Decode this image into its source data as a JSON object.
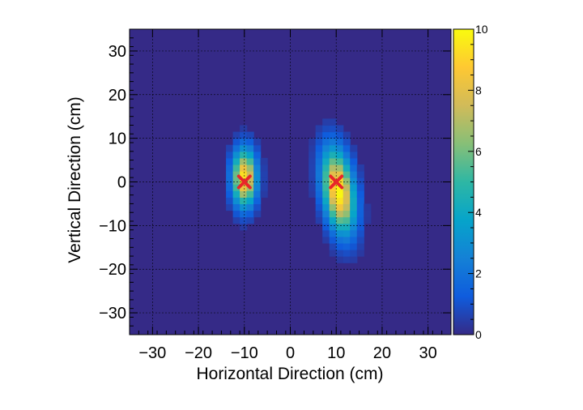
{
  "chart_data": {
    "type": "heatmap",
    "xlabel": "Horizontal Direction (cm)",
    "ylabel": "Vertical Direction (cm)",
    "xlim": [
      -35,
      35
    ],
    "ylim": [
      -35,
      35
    ],
    "x_ticks": [
      -30,
      -20,
      -10,
      0,
      10,
      20,
      30
    ],
    "x_tick_labels": [
      "−30",
      "−20",
      "−10",
      "0",
      "10",
      "20",
      "30"
    ],
    "y_ticks": [
      30,
      20,
      10,
      0,
      -10,
      -20,
      -30
    ],
    "y_tick_labels": [
      "30",
      "20",
      "10",
      "0",
      "−10",
      "−20",
      "−30"
    ],
    "grid": true,
    "colorbar": {
      "range": [
        0,
        10
      ],
      "ticks": [
        0,
        2,
        4,
        6,
        8,
        10
      ],
      "tick_labels": [
        "0",
        "2",
        "4",
        "6",
        "8",
        "10"
      ],
      "colors": [
        "#352a87",
        "#0f5cdd",
        "#1481d6",
        "#06a4ca",
        "#2eb7a4",
        "#87bf77",
        "#d1bb59",
        "#fec832",
        "#f9fb0e"
      ]
    },
    "background_color": "#352a87",
    "blobs": [
      {
        "center_x": -10,
        "center_y": 1,
        "sigma_x": 1.8,
        "sigma_y": 4.5,
        "peak": 9.5
      },
      {
        "center_x": 10.5,
        "center_y": -2,
        "sigma_x": 2.3,
        "sigma_y": 6.5,
        "peak": 10,
        "tilt": -0.12
      }
    ],
    "markers": [
      {
        "x": -10,
        "y": 0,
        "symbol": "x",
        "color": "#e8262a"
      },
      {
        "x": 10,
        "y": 0,
        "symbol": "x",
        "color": "#e8262a"
      }
    ]
  }
}
